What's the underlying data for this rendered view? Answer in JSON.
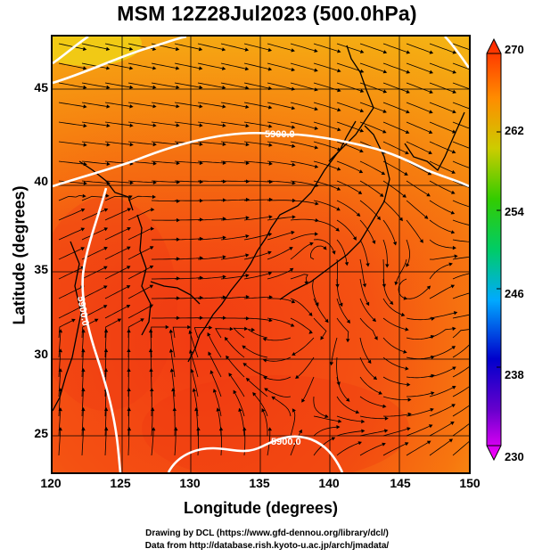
{
  "title": "MSM 12Z28Jul2023 (500.0hPa)",
  "axes": {
    "x_label": "Longitude (degrees)",
    "y_label": "Latitude  (degrees)",
    "x_ticks": [
      "120",
      "125",
      "130",
      "135",
      "140",
      "145",
      "150"
    ],
    "y_ticks": [
      "45",
      "40",
      "35",
      "30",
      "25"
    ]
  },
  "contour_labels": [
    "5900.0",
    "5900.0",
    "5900.0"
  ],
  "colorbar": {
    "ticks": [
      "270",
      "262",
      "254",
      "246",
      "238",
      "230"
    ],
    "colors": [
      "#ff00ff",
      "#0000cc",
      "#00aaff",
      "#00cc33",
      "#cccc00",
      "#ff8c00",
      "#ff2200"
    ]
  },
  "map_colors": {
    "warm": "#f23b12",
    "mid": "#f7640e",
    "cool": "#f5a010",
    "yellow": "#f0cf14"
  },
  "credits": {
    "line1": "Drawing by DCL (https://www.gfd-dennou.org/library/dcl/)",
    "line2": "Data from http://database.rish.kyoto-u.ac.jp/arch/jmadata/"
  }
}
